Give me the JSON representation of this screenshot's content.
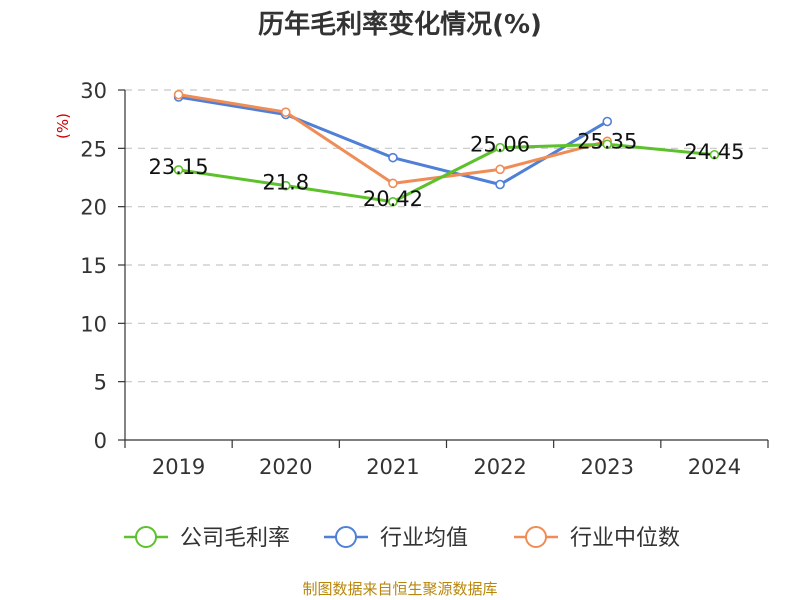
{
  "chart_data": {
    "type": "line",
    "title": "历年毛利率变化情况(%)",
    "ylabel": "(%)",
    "categories": [
      "2019",
      "2020",
      "2021",
      "2022",
      "2023",
      "2024"
    ],
    "ylim": [
      0,
      30
    ],
    "yticks": [
      0,
      5,
      10,
      15,
      20,
      25,
      30
    ],
    "grid": true,
    "legend_position": "bottom",
    "series": [
      {
        "name": "公司毛利率",
        "color": "#5cc12b",
        "values": [
          23.15,
          21.8,
          20.42,
          25.06,
          25.35,
          24.45
        ],
        "labels": [
          "23.15",
          "21.8",
          "20.42",
          "25.06",
          "25.35",
          "24.45"
        ]
      },
      {
        "name": "行业均值",
        "color": "#4f7fd6",
        "values": [
          29.4,
          27.9,
          24.2,
          21.9,
          27.3,
          null
        ]
      },
      {
        "name": "行业中位数",
        "color": "#f08c55",
        "values": [
          29.6,
          28.1,
          22.0,
          23.2,
          25.6,
          null
        ]
      }
    ]
  },
  "source": "制图数据来自恒生聚源数据库"
}
